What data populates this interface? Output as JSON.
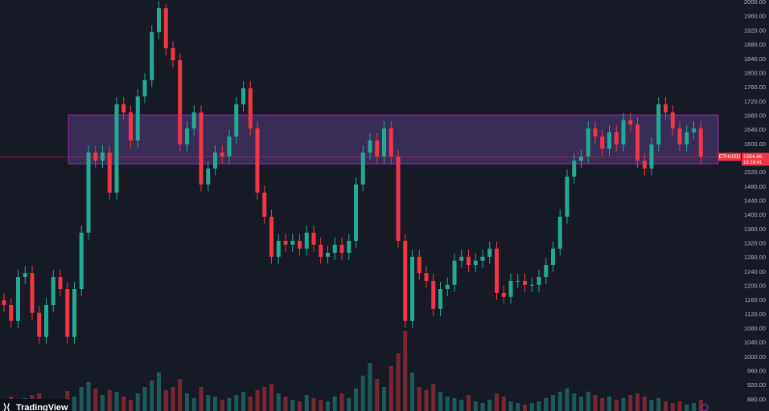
{
  "chart_data": {
    "type": "candlestick",
    "symbol": "ETHUSD",
    "countdown": "16:16:41",
    "watermark": "TradingView",
    "up_color": "#22ab94",
    "down_color": "#f23645",
    "grid": false,
    "ylim": [
      848,
      2007
    ],
    "yticks": [
      {
        "value": 880,
        "label": "880.00"
      },
      {
        "value": 920,
        "label": "920.00"
      },
      {
        "value": 960,
        "label": "960.00"
      },
      {
        "value": 1000,
        "label": "1000.00"
      },
      {
        "value": 1040,
        "label": "1040.00"
      },
      {
        "value": 1080,
        "label": "1080.00"
      },
      {
        "value": 1120,
        "label": "1120.00"
      },
      {
        "value": 1160,
        "label": "1160.00"
      },
      {
        "value": 1200,
        "label": "1200.00"
      },
      {
        "value": 1240,
        "label": "1240.00"
      },
      {
        "value": 1280,
        "label": "1280.00"
      },
      {
        "value": 1320,
        "label": "1320.00"
      },
      {
        "value": 1360,
        "label": "1360.00"
      },
      {
        "value": 1400,
        "label": "1400.00"
      },
      {
        "value": 1440,
        "label": "1440.00"
      },
      {
        "value": 1480,
        "label": "1480.00"
      },
      {
        "value": 1520,
        "label": "1520.00"
      },
      {
        "value": 1560,
        "label": "1560.00"
      },
      {
        "value": 1600,
        "label": "1600.00"
      },
      {
        "value": 1640,
        "label": "1640.00"
      },
      {
        "value": 1680,
        "label": "1680.00"
      },
      {
        "value": 1720,
        "label": "1720.00"
      },
      {
        "value": 1760,
        "label": "1760.00"
      },
      {
        "value": 1800,
        "label": "1800.00"
      },
      {
        "value": 1840,
        "label": "1840.00"
      },
      {
        "value": 1880,
        "label": "1880.00"
      },
      {
        "value": 1920,
        "label": "1920.00"
      },
      {
        "value": 1960,
        "label": "1960.00"
      },
      {
        "value": 2000,
        "label": "2000.00"
      }
    ],
    "zone": {
      "top": 1683,
      "bottom": 1545,
      "color": "#7e57c2"
    },
    "open": [
      1160,
      1147,
      1102,
      1226,
      1237,
      1125,
      1057,
      1147,
      1226,
      1192,
      1057,
      1192,
      1351,
      1577,
      1554,
      1577,
      1464,
      1713,
      1690,
      1611,
      1735,
      1781,
      1916,
      1984,
      1871,
      1837,
      1600,
      1645,
      1690,
      1487,
      1532,
      1577,
      1566,
      1622,
      1713,
      1758,
      1645,
      1464,
      1396,
      1283,
      1328,
      1317,
      1328,
      1306,
      1351,
      1317,
      1283,
      1294,
      1317,
      1294,
      1328,
      1487,
      1577,
      1611,
      1566,
      1645,
      1566,
      1328,
      1102,
      1283,
      1237,
      1215,
      1136,
      1192,
      1204,
      1272,
      1283,
      1260,
      1272,
      1283,
      1306,
      1181,
      1170,
      1215,
      1215,
      1204,
      1204,
      1226,
      1260,
      1306,
      1396,
      1509,
      1554,
      1566,
      1645,
      1622,
      1588,
      1634,
      1600,
      1668,
      1656,
      1554,
      1532,
      1600,
      1713,
      1690,
      1645,
      1600,
      1634,
      1645
    ],
    "high": [
      1180,
      1167,
      1246,
      1257,
      1257,
      1145,
      1167,
      1246,
      1246,
      1212,
      1212,
      1371,
      1597,
      1597,
      1597,
      1597,
      1733,
      1733,
      1710,
      1755,
      1801,
      1936,
      2004,
      1995,
      1891,
      1857,
      1665,
      1710,
      1710,
      1552,
      1597,
      1597,
      1642,
      1733,
      1778,
      1778,
      1665,
      1484,
      1416,
      1348,
      1348,
      1348,
      1348,
      1371,
      1371,
      1337,
      1314,
      1337,
      1337,
      1348,
      1507,
      1597,
      1631,
      1631,
      1665,
      1665,
      1586,
      1348,
      1303,
      1303,
      1257,
      1235,
      1212,
      1224,
      1292,
      1303,
      1303,
      1292,
      1303,
      1326,
      1326,
      1201,
      1235,
      1235,
      1235,
      1224,
      1246,
      1280,
      1326,
      1416,
      1529,
      1574,
      1586,
      1665,
      1665,
      1642,
      1654,
      1654,
      1688,
      1688,
      1676,
      1574,
      1620,
      1733,
      1733,
      1710,
      1665,
      1654,
      1665,
      1665
    ],
    "low": [
      1127,
      1082,
      1082,
      1206,
      1105,
      1037,
      1037,
      1127,
      1172,
      1037,
      1037,
      1172,
      1331,
      1534,
      1534,
      1444,
      1444,
      1670,
      1591,
      1591,
      1715,
      1761,
      1896,
      1851,
      1817,
      1580,
      1580,
      1625,
      1467,
      1467,
      1512,
      1546,
      1546,
      1602,
      1693,
      1625,
      1444,
      1376,
      1263,
      1263,
      1297,
      1297,
      1286,
      1286,
      1297,
      1263,
      1263,
      1274,
      1274,
      1274,
      1308,
      1467,
      1557,
      1546,
      1546,
      1546,
      1308,
      1082,
      1082,
      1217,
      1195,
      1116,
      1116,
      1172,
      1184,
      1252,
      1240,
      1240,
      1252,
      1263,
      1161,
      1150,
      1150,
      1195,
      1184,
      1184,
      1184,
      1206,
      1240,
      1286,
      1376,
      1489,
      1534,
      1546,
      1602,
      1568,
      1568,
      1580,
      1580,
      1636,
      1534,
      1512,
      1512,
      1580,
      1670,
      1625,
      1580,
      1580,
      1614,
      1545
    ],
    "close": [
      1147,
      1102,
      1226,
      1237,
      1125,
      1057,
      1147,
      1226,
      1192,
      1057,
      1192,
      1351,
      1577,
      1554,
      1577,
      1464,
      1713,
      1690,
      1611,
      1735,
      1781,
      1916,
      1984,
      1871,
      1837,
      1600,
      1645,
      1690,
      1487,
      1532,
      1577,
      1566,
      1622,
      1713,
      1758,
      1645,
      1464,
      1396,
      1283,
      1328,
      1317,
      1328,
      1306,
      1351,
      1317,
      1283,
      1294,
      1317,
      1294,
      1328,
      1487,
      1577,
      1611,
      1566,
      1645,
      1566,
      1328,
      1102,
      1283,
      1237,
      1215,
      1136,
      1192,
      1204,
      1272,
      1283,
      1260,
      1272,
      1283,
      1306,
      1181,
      1170,
      1215,
      1215,
      1204,
      1204,
      1226,
      1260,
      1306,
      1396,
      1509,
      1554,
      1566,
      1645,
      1622,
      1588,
      1634,
      1600,
      1668,
      1656,
      1554,
      1532,
      1600,
      1713,
      1690,
      1645,
      1600,
      1634,
      1645,
      1564.66
    ],
    "volume": [
      14,
      18,
      12,
      16,
      20,
      22,
      14,
      12,
      10,
      25,
      18,
      30,
      36,
      28,
      20,
      26,
      24,
      18,
      14,
      22,
      30,
      38,
      48,
      26,
      30,
      40,
      22,
      16,
      30,
      20,
      18,
      14,
      16,
      20,
      24,
      18,
      26,
      30,
      34,
      22,
      18,
      14,
      12,
      20,
      16,
      14,
      12,
      18,
      22,
      16,
      28,
      44,
      60,
      40,
      30,
      56,
      72,
      100,
      48,
      30,
      26,
      34,
      24,
      18,
      16,
      14,
      20,
      12,
      10,
      14,
      22,
      18,
      12,
      10,
      8,
      10,
      12,
      16,
      20,
      24,
      28,
      22,
      18,
      24,
      20,
      16,
      18,
      14,
      16,
      20,
      22,
      18,
      14,
      16,
      12,
      10,
      12,
      8,
      10,
      14
    ]
  }
}
